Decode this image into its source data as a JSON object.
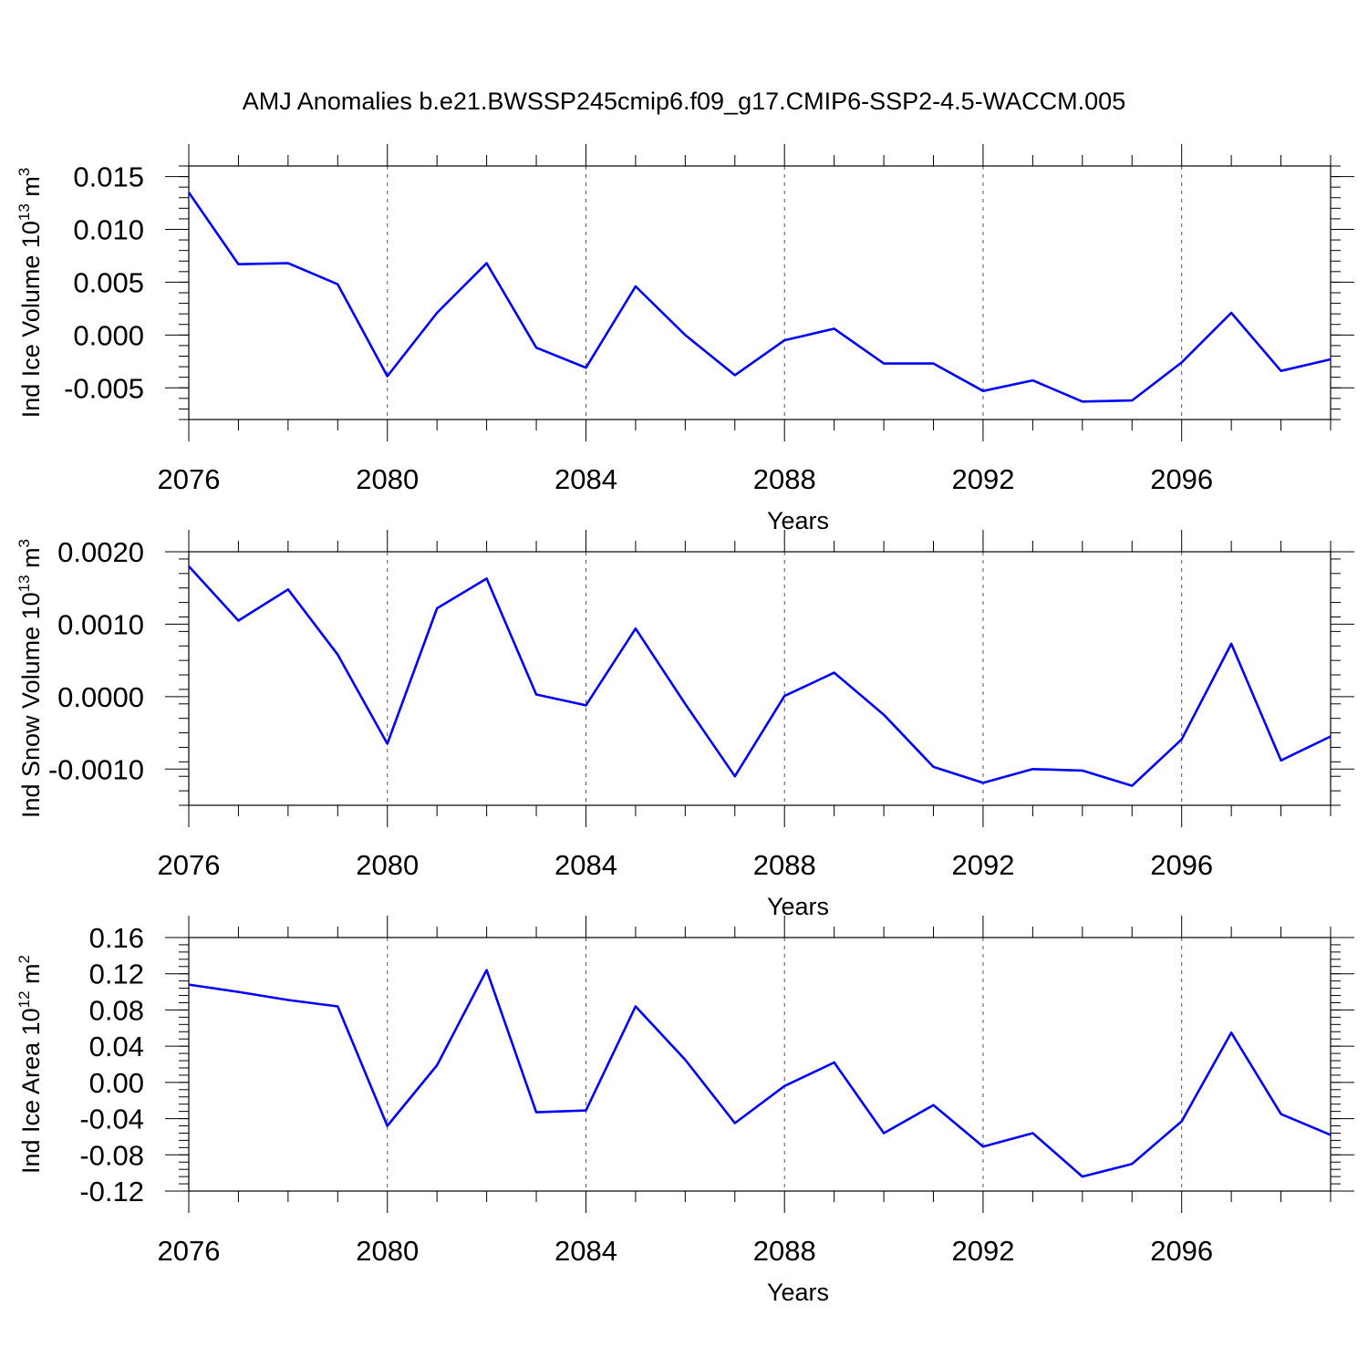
{
  "title": "AMJ Anomalies b.e21.BWSSP245cmip6.f09_g17.CMIP6-SSP2-4.5-WACCM.005",
  "chart_data": [
    {
      "type": "line",
      "xlabel": "Years",
      "ylabel": "Ind Ice Volume 10",
      "ylabel_exp": "13",
      "ylabel_unit": " m",
      "ylabel_unit_exp": "3",
      "xlim": [
        2076,
        2099
      ],
      "ylim": [
        -0.008,
        0.016
      ],
      "yticks": [
        -0.005,
        0.0,
        0.005,
        0.01,
        0.015
      ],
      "ytick_labels": [
        "-0.005",
        "0.000",
        "0.005",
        "0.010",
        "0.015"
      ],
      "xticks": [
        2076,
        2080,
        2084,
        2088,
        2092,
        2096
      ],
      "xtick_labels": [
        "2076",
        "2080",
        "2084",
        "2088",
        "2092",
        "2096"
      ],
      "grid": "vertical-dashed",
      "series": [
        {
          "color": "#0000ff",
          "x": [
            2076,
            2077,
            2078,
            2079,
            2080,
            2081,
            2082,
            2083,
            2084,
            2085,
            2086,
            2087,
            2088,
            2089,
            2090,
            2091,
            2092,
            2093,
            2094,
            2095,
            2096,
            2097,
            2098,
            2099
          ],
          "y": [
            0.0135,
            0.0067,
            0.0068,
            0.0048,
            -0.0039,
            0.0021,
            0.0068,
            -0.0012,
            -0.0031,
            0.0046,
            0.0,
            -0.0038,
            -0.0005,
            0.0006,
            -0.0027,
            -0.0027,
            -0.0053,
            -0.0043,
            -0.0063,
            -0.0062,
            -0.0026,
            0.0021,
            -0.0034,
            -0.0023
          ]
        }
      ]
    },
    {
      "type": "line",
      "xlabel": "Years",
      "ylabel": "Ind Snow Volume 10",
      "ylabel_exp": "13",
      "ylabel_unit": " m",
      "ylabel_unit_exp": "3",
      "xlim": [
        2076,
        2099
      ],
      "ylim": [
        -0.0015,
        0.002
      ],
      "yticks": [
        -0.001,
        0.0,
        0.001,
        0.002
      ],
      "ytick_labels": [
        "-0.0010",
        "0.0000",
        "0.0010",
        "0.0020"
      ],
      "xticks": [
        2076,
        2080,
        2084,
        2088,
        2092,
        2096
      ],
      "xtick_labels": [
        "2076",
        "2080",
        "2084",
        "2088",
        "2092",
        "2096"
      ],
      "grid": "vertical-dashed",
      "series": [
        {
          "color": "#0000ff",
          "x": [
            2076,
            2077,
            2078,
            2079,
            2080,
            2081,
            2082,
            2083,
            2084,
            2085,
            2086,
            2087,
            2088,
            2089,
            2090,
            2091,
            2092,
            2093,
            2094,
            2095,
            2096,
            2097,
            2098,
            2099
          ],
          "y": [
            0.0018,
            0.00105,
            0.00148,
            0.00058,
            -0.00065,
            0.00122,
            0.00163,
            3e-05,
            -0.00012,
            0.00094,
            -0.0001,
            -0.0011,
            1e-05,
            0.00033,
            -0.00025,
            -0.00097,
            -0.00119,
            -0.001,
            -0.00102,
            -0.00123,
            -0.00059,
            0.00073,
            -0.00088,
            -0.00055
          ]
        }
      ]
    },
    {
      "type": "line",
      "xlabel": "Years",
      "ylabel": "Ind Ice Area 10",
      "ylabel_exp": "12",
      "ylabel_unit": " m",
      "ylabel_unit_exp": "2",
      "xlim": [
        2076,
        2099
      ],
      "ylim": [
        -0.12,
        0.16
      ],
      "yticks": [
        -0.12,
        -0.08,
        -0.04,
        0.0,
        0.04,
        0.08,
        0.12,
        0.16
      ],
      "ytick_labels": [
        "-0.12",
        "-0.08",
        "-0.04",
        "0.00",
        "0.04",
        "0.08",
        "0.12",
        "0.16"
      ],
      "xticks": [
        2076,
        2080,
        2084,
        2088,
        2092,
        2096
      ],
      "xtick_labels": [
        "2076",
        "2080",
        "2084",
        "2088",
        "2092",
        "2096"
      ],
      "grid": "vertical-dashed",
      "series": [
        {
          "color": "#0000ff",
          "x": [
            2076,
            2077,
            2078,
            2079,
            2080,
            2081,
            2082,
            2083,
            2084,
            2085,
            2086,
            2087,
            2088,
            2089,
            2090,
            2091,
            2092,
            2093,
            2094,
            2095,
            2096,
            2097,
            2098,
            2099
          ],
          "y": [
            0.108,
            0.1,
            0.091,
            0.084,
            -0.048,
            0.019,
            0.124,
            -0.033,
            -0.031,
            0.084,
            0.025,
            -0.045,
            -0.004,
            0.022,
            -0.056,
            -0.025,
            -0.071,
            -0.056,
            -0.104,
            -0.09,
            -0.043,
            0.055,
            -0.035,
            -0.058
          ]
        }
      ]
    }
  ]
}
